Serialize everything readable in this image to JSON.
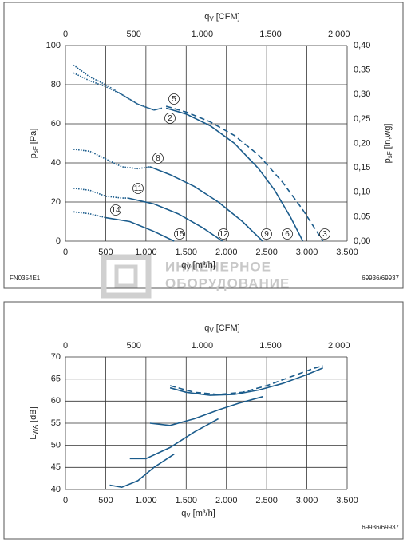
{
  "chart_data": [
    {
      "type": "line",
      "x_top_label": [
        "q",
        "V",
        "[CFM]"
      ],
      "xlabel": [
        "q",
        "V",
        "[m³/h]"
      ],
      "ylabel": [
        "p",
        "sF",
        "[Pa]"
      ],
      "y2label": [
        "p",
        "sF",
        "[in,wg]"
      ],
      "xlim": [
        0,
        3500
      ],
      "xticks": [
        0,
        500,
        {
          "value": 1000,
          "label": "1.000"
        },
        {
          "value": 1500,
          "label": "1.500"
        },
        {
          "value": 2000,
          "label": "2.000"
        },
        {
          "value": 2500,
          "label": "2.500"
        },
        {
          "value": 3000,
          "label": "3.000"
        },
        {
          "value": 3500,
          "label": "3.500"
        }
      ],
      "x2lim": [
        0,
        2060
      ],
      "x2ticks": [
        0,
        500,
        {
          "value": 1000,
          "label": "1.000"
        },
        {
          "value": 1500,
          "label": "1.500"
        },
        {
          "value": 2000,
          "label": "2.000"
        }
      ],
      "ylim": [
        0,
        100
      ],
      "yticks": [
        0,
        20,
        40,
        60,
        80,
        100
      ],
      "y2lim": [
        0,
        0.4
      ],
      "y2ticks": [
        {
          "value": 0,
          "label": "0,00"
        },
        {
          "value": 0.05,
          "label": "0,05"
        },
        {
          "value": 0.1,
          "label": "0,10"
        },
        {
          "value": 0.15,
          "label": "0,15"
        },
        {
          "value": 0.2,
          "label": "0,20"
        },
        {
          "value": 0.25,
          "label": "0,25"
        },
        {
          "value": 0.3,
          "label": "0,30"
        },
        {
          "value": 0.35,
          "label": "0,35"
        },
        {
          "value": 0.4,
          "label": "0,40"
        }
      ],
      "grid": true,
      "series": [
        {
          "color": "#1b5c8c",
          "style": "dotted",
          "x": [
            100,
            300,
            500,
            700,
            900,
            1100,
            1200
          ],
          "values": [
            90,
            84,
            80,
            75,
            70,
            67,
            68
          ]
        },
        {
          "color": "#1b5c8c",
          "style": "dotted",
          "x": [
            100,
            300,
            500,
            700,
            900,
            1100,
            1200
          ],
          "values": [
            86,
            82,
            79,
            75,
            70,
            67,
            68
          ]
        },
        {
          "color": "#1b5c8c",
          "style": "dashed",
          "x": [
            1250,
            1500,
            1800,
            2100,
            2400,
            2700,
            2950,
            3200
          ],
          "values": [
            69,
            66,
            61,
            54,
            44,
            30,
            16,
            0
          ]
        },
        {
          "color": "#1b5c8c",
          "style": "solid",
          "x": [
            1250,
            1500,
            1800,
            2100,
            2400,
            2600,
            2800,
            2950
          ],
          "values": [
            68,
            65,
            59,
            50,
            37,
            26,
            12,
            0
          ]
        },
        {
          "color": "#1b5c8c",
          "style": "dotted",
          "x": [
            100,
            300,
            500,
            700,
            900,
            1050
          ],
          "values": [
            47,
            46,
            42,
            38,
            37,
            38
          ]
        },
        {
          "color": "#1b5c8c",
          "style": "solid",
          "x": [
            1050,
            1300,
            1600,
            1900,
            2200,
            2450
          ],
          "values": [
            38,
            34,
            28,
            20,
            10,
            0
          ]
        },
        {
          "color": "#1b5c8c",
          "style": "dotted",
          "x": [
            100,
            300,
            500,
            700,
            780
          ],
          "values": [
            27,
            26,
            23,
            22,
            22
          ]
        },
        {
          "color": "#1b5c8c",
          "style": "solid",
          "x": [
            780,
            1100,
            1400,
            1700,
            1950
          ],
          "values": [
            22,
            19,
            14,
            7,
            0
          ]
        },
        {
          "color": "#1b5c8c",
          "style": "dotted",
          "x": [
            100,
            300,
            500
          ],
          "values": [
            15,
            14,
            12
          ]
        },
        {
          "color": "#1b5c8c",
          "style": "solid",
          "x": [
            500,
            800,
            1100,
            1350
          ],
          "values": [
            12,
            10,
            5,
            0
          ]
        }
      ],
      "curve_labels": [
        "5",
        "2",
        "8",
        "11",
        "14",
        "15",
        "12",
        "9",
        "6",
        "3"
      ],
      "footnote_left": "FN0354E1",
      "footnote_right": "69936/69937"
    },
    {
      "type": "line",
      "x_top_label": [
        "q",
        "V",
        "[CFM]"
      ],
      "xlabel": [
        "q",
        "V",
        "[m³/h]"
      ],
      "ylabel": [
        "L",
        "WA",
        "[dB]"
      ],
      "xlim": [
        0,
        3500
      ],
      "xticks": [
        0,
        500,
        {
          "value": 1000,
          "label": "1.000"
        },
        {
          "value": 1500,
          "label": "1.500"
        },
        {
          "value": 2000,
          "label": "2.000"
        },
        {
          "value": 2500,
          "label": "2.500"
        },
        {
          "value": 3000,
          "label": "3.000"
        },
        {
          "value": 3500,
          "label": "3.500"
        }
      ],
      "x2lim": [
        0,
        2060
      ],
      "x2ticks": [
        0,
        500,
        {
          "value": 1000,
          "label": "1.000"
        },
        {
          "value": 1500,
          "label": "1.500"
        },
        {
          "value": 2000,
          "label": "2.000"
        }
      ],
      "ylim": [
        40,
        70
      ],
      "yticks": [
        40,
        45,
        50,
        55,
        60,
        65,
        70
      ],
      "grid": true,
      "series": [
        {
          "color": "#1b5c8c",
          "style": "solid",
          "x": [
            1300,
            1500,
            1800,
            2100,
            2400,
            2700,
            3000,
            3200
          ],
          "values": [
            63,
            62,
            61.3,
            61.5,
            62.5,
            64,
            66,
            67.5
          ]
        },
        {
          "color": "#1b5c8c",
          "style": "dashed",
          "x": [
            1300,
            1600,
            1900,
            2200,
            2500,
            2800,
            3100,
            3200
          ],
          "values": [
            63.5,
            62,
            61.5,
            62,
            63.5,
            65.5,
            67.5,
            68
          ]
        },
        {
          "color": "#1b5c8c",
          "style": "solid",
          "x": [
            1050,
            1300,
            1600,
            1900,
            2150,
            2450
          ],
          "values": [
            55,
            54.5,
            56,
            58,
            59.5,
            61
          ]
        },
        {
          "color": "#1b5c8c",
          "style": "solid",
          "x": [
            800,
            1000,
            1300,
            1600,
            1900
          ],
          "values": [
            47,
            47,
            49.5,
            53,
            56
          ]
        },
        {
          "color": "#1b5c8c",
          "style": "solid",
          "x": [
            550,
            700,
            900,
            1100,
            1350
          ],
          "values": [
            41,
            40.5,
            42,
            45,
            48
          ]
        }
      ],
      "footnote_right": "69936/69937"
    }
  ],
  "watermark": [
    "ИНЖЕНЕРНОЕ",
    "ОБОРУДОВАНИЕ"
  ]
}
